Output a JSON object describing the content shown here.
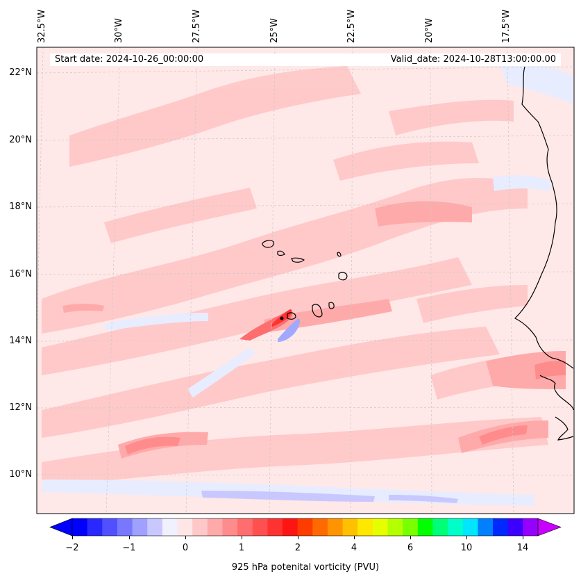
{
  "map": {
    "header": {
      "start_date": "Start date: 2024-10-26_00:00:00",
      "valid_date": "Valid_date: 2024-10-28T13:00:00.00"
    },
    "longitude_labels": [
      "32.5°W",
      "30°W",
      "27.5°W",
      "25°W",
      "22.5°W",
      "20°W",
      "17.5°W"
    ],
    "latitude_labels": [
      "22°N",
      "20°N",
      "18°N",
      "16°N",
      "14°N",
      "12°N",
      "10°N"
    ],
    "colorbar": {
      "label": "925 hPa potenital vorticity (PVU)",
      "tick_labels": [
        "−2",
        "−1",
        "0",
        "1",
        "2",
        "4",
        "6",
        "10",
        "14"
      ],
      "colors": [
        "#0000ff",
        "#2828ff",
        "#5050ff",
        "#7878ff",
        "#a0a0ff",
        "#c8c8ff",
        "#f0f0ff",
        "#ffe6e6",
        "#ffc8c8",
        "#ffaaaa",
        "#ff8c8c",
        "#ff6e6e",
        "#ff5050",
        "#ff3232",
        "#ff1414",
        "#ff3c00",
        "#ff6a00",
        "#ff9400",
        "#ffc000",
        "#ffe800",
        "#e6ff00",
        "#b4ff00",
        "#78ff00",
        "#00ff00",
        "#00ff78",
        "#00ffc8",
        "#00e6ff",
        "#0080ff",
        "#0028ff",
        "#3c00ff",
        "#9600ff"
      ],
      "under_color": "#0000ff",
      "over_color": "#c800ff"
    },
    "fill_colors": {
      "background": "#ffe8e8",
      "light_pink": "#ffc8c8",
      "medium_pink": "#ffaaaa",
      "red": "#ff6e6e",
      "strong_red": "#ff3232",
      "light_blue": "#e8ecff",
      "blue": "#c8c8ff",
      "mid_blue": "#a0a8ff"
    }
  }
}
